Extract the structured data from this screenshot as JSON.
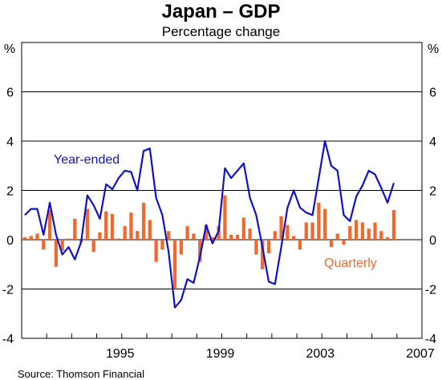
{
  "chart_data": {
    "type": "bar+line",
    "title": "Japan – GDP",
    "subtitle": "Percentage change",
    "y_unit_left": "%",
    "y_unit_right": "%",
    "ylim": [
      -4,
      8
    ],
    "y_ticks": [
      -4,
      -2,
      0,
      2,
      4,
      6
    ],
    "xlim": [
      1991.0,
      2007.0
    ],
    "x_ticks": [
      1995,
      1999,
      2003,
      2007
    ],
    "source": "Source: Thomson Financial",
    "series": [
      {
        "name": "Year-ended",
        "type": "line",
        "color": "#1010cc",
        "points": [
          [
            1991.125,
            1.0
          ],
          [
            1991.375,
            1.25
          ],
          [
            1991.625,
            1.25
          ],
          [
            1991.875,
            0.2
          ],
          [
            1992.125,
            1.5
          ],
          [
            1992.375,
            0.2
          ],
          [
            1992.625,
            -0.6
          ],
          [
            1992.875,
            -0.3
          ],
          [
            1993.125,
            -0.8
          ],
          [
            1993.375,
            -0.1
          ],
          [
            1993.625,
            1.8
          ],
          [
            1993.875,
            1.4
          ],
          [
            1994.125,
            0.85
          ],
          [
            1994.375,
            2.25
          ],
          [
            1994.625,
            2.05
          ],
          [
            1994.875,
            2.5
          ],
          [
            1995.125,
            2.8
          ],
          [
            1995.375,
            2.75
          ],
          [
            1995.625,
            2.0
          ],
          [
            1995.875,
            3.6
          ],
          [
            1996.125,
            3.7
          ],
          [
            1996.375,
            1.7
          ],
          [
            1996.625,
            1.0
          ],
          [
            1996.875,
            -0.5
          ],
          [
            1997.125,
            -2.75
          ],
          [
            1997.375,
            -2.45
          ],
          [
            1997.625,
            -1.6
          ],
          [
            1997.875,
            -1.75
          ],
          [
            1998.125,
            -0.7
          ],
          [
            1998.375,
            0.6
          ],
          [
            1998.625,
            -0.15
          ],
          [
            1998.875,
            0.35
          ],
          [
            1999.125,
            2.9
          ],
          [
            1999.375,
            2.5
          ],
          [
            1999.625,
            2.8
          ],
          [
            1999.875,
            3.1
          ],
          [
            2000.125,
            1.7
          ],
          [
            2000.375,
            1.0
          ],
          [
            2000.625,
            -0.3
          ],
          [
            2000.875,
            -1.7
          ],
          [
            2001.125,
            -1.8
          ],
          [
            2001.375,
            -0.3
          ],
          [
            2001.625,
            1.3
          ],
          [
            2001.875,
            2.0
          ],
          [
            2002.125,
            1.3
          ],
          [
            2002.375,
            1.1
          ],
          [
            2002.625,
            1.0
          ],
          [
            2002.875,
            2.5
          ],
          [
            2003.125,
            4.0
          ],
          [
            2003.375,
            3.0
          ],
          [
            2003.625,
            2.8
          ],
          [
            2003.875,
            1.0
          ],
          [
            2004.125,
            0.75
          ],
          [
            2004.375,
            1.75
          ],
          [
            2004.625,
            2.2
          ],
          [
            2004.875,
            2.8
          ],
          [
            2005.125,
            2.65
          ],
          [
            2005.375,
            2.1
          ],
          [
            2005.625,
            1.5
          ],
          [
            2005.875,
            2.3
          ]
        ]
      },
      {
        "name": "Quarterly",
        "type": "bar",
        "color": "#f06a30",
        "points": [
          [
            1991.125,
            0.1
          ],
          [
            1991.375,
            0.15
          ],
          [
            1991.625,
            0.25
          ],
          [
            1991.875,
            -0.4
          ],
          [
            1992.125,
            1.2
          ],
          [
            1992.375,
            -1.1
          ],
          [
            1992.625,
            -0.45
          ],
          [
            1992.875,
            0.05
          ],
          [
            1993.125,
            0.85
          ],
          [
            1993.375,
            -0.1
          ],
          [
            1993.625,
            1.25
          ],
          [
            1993.875,
            -0.5
          ],
          [
            1994.125,
            0.3
          ],
          [
            1994.375,
            1.15
          ],
          [
            1994.625,
            1.05
          ],
          [
            1994.875,
            0.05
          ],
          [
            1995.125,
            0.55
          ],
          [
            1995.375,
            1.1
          ],
          [
            1995.625,
            0.35
          ],
          [
            1995.875,
            1.5
          ],
          [
            1996.125,
            0.8
          ],
          [
            1996.375,
            -0.9
          ],
          [
            1996.625,
            -0.4
          ],
          [
            1996.875,
            0.35
          ],
          [
            1997.125,
            -2.0
          ],
          [
            1997.375,
            -0.6
          ],
          [
            1997.625,
            0.55
          ],
          [
            1997.875,
            0.25
          ],
          [
            1998.125,
            -0.9
          ],
          [
            1998.375,
            0.6
          ],
          [
            1998.625,
            0.1
          ],
          [
            1998.875,
            0.55
          ],
          [
            1999.125,
            1.8
          ],
          [
            1999.375,
            0.2
          ],
          [
            1999.625,
            0.2
          ],
          [
            1999.875,
            0.9
          ],
          [
            2000.125,
            0.45
          ],
          [
            2000.375,
            -0.6
          ],
          [
            2000.625,
            -1.2
          ],
          [
            2000.875,
            -0.55
          ],
          [
            2001.125,
            0.35
          ],
          [
            2001.375,
            0.95
          ],
          [
            2001.625,
            0.6
          ],
          [
            2001.875,
            0.15
          ],
          [
            2002.125,
            -0.4
          ],
          [
            2002.375,
            0.7
          ],
          [
            2002.625,
            0.7
          ],
          [
            2002.875,
            1.5
          ],
          [
            2003.125,
            1.25
          ],
          [
            2003.375,
            -0.3
          ],
          [
            2003.625,
            0.25
          ],
          [
            2003.875,
            -0.2
          ],
          [
            2004.125,
            0.55
          ],
          [
            2004.375,
            0.8
          ],
          [
            2004.625,
            0.7
          ],
          [
            2004.875,
            0.45
          ],
          [
            2005.125,
            0.7
          ],
          [
            2005.375,
            0.35
          ],
          [
            2005.625,
            0.1
          ],
          [
            2005.875,
            1.2
          ]
        ]
      }
    ]
  }
}
